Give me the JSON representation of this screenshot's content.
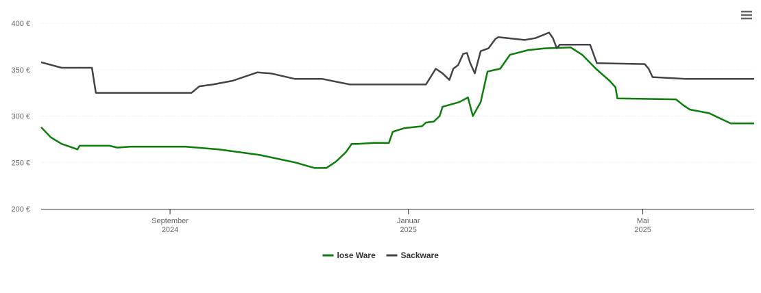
{
  "chart_data": {
    "type": "line",
    "xlim": [
      0,
      365
    ],
    "xticks": [
      {
        "value": 66,
        "label": "September 2024"
      },
      {
        "value": 188,
        "label": "Januar 2025"
      },
      {
        "value": 308,
        "label": "Mai 2025"
      }
    ],
    "ylim": [
      200,
      400
    ],
    "yticks": [
      {
        "value": 200,
        "label": "200 €"
      },
      {
        "value": 250,
        "label": "250 €"
      },
      {
        "value": 300,
        "label": "300 €"
      },
      {
        "value": 350,
        "label": "350 €"
      },
      {
        "value": 400,
        "label": "400 €"
      }
    ],
    "grid": true,
    "legend": "bottom",
    "series": [
      {
        "name": "lose Ware",
        "color": "#0a7d0a",
        "x": [
          0,
          5,
          10.5,
          16,
          18.6,
          19.7,
          35,
          39,
          45.6,
          74,
          91,
          112,
          130,
          140,
          146,
          151,
          156,
          159,
          162,
          170,
          178,
          180,
          186,
          195,
          197,
          201,
          204,
          205.5,
          214,
          218.5,
          221,
          225,
          228.5,
          235,
          240,
          249,
          258,
          271,
          277,
          284,
          291,
          294,
          295,
          325,
          328.5,
          332,
          342,
          346,
          353,
          356,
          365
        ],
        "values": [
          288,
          277,
          270,
          266,
          264,
          268,
          268,
          266,
          267,
          267,
          264,
          258,
          250,
          244,
          244,
          251,
          261,
          270,
          270,
          271,
          271,
          283,
          287,
          289,
          293,
          294,
          300,
          310,
          315,
          320,
          300,
          315,
          348,
          351,
          366,
          371,
          373,
          374,
          366,
          351,
          338,
          331,
          319,
          318,
          312,
          307,
          303,
          299,
          292,
          292,
          292
        ]
      },
      {
        "name": "Sackware",
        "color": "#434348",
        "x": [
          0,
          10.5,
          26,
          28,
          77,
          81,
          88,
          98,
          110.6,
          117.6,
          130,
          144,
          151,
          158,
          197,
          202,
          205.5,
          209,
          211,
          213.5,
          216,
          218,
          219.5,
          222,
          225,
          229,
          232.5,
          234,
          239,
          247.5,
          253,
          260,
          262,
          264,
          265.5,
          281,
          284.5,
          309,
          311,
          313,
          330,
          365
        ],
        "values": [
          358,
          352,
          352,
          325,
          325,
          332,
          334,
          338,
          347,
          346,
          340,
          340,
          337,
          334,
          334,
          351,
          346,
          339,
          351,
          355,
          367,
          368,
          358,
          346,
          370,
          373,
          383,
          385,
          384,
          382,
          384,
          390,
          384,
          373,
          377,
          377,
          357,
          356,
          351,
          342,
          340,
          340
        ]
      }
    ]
  }
}
